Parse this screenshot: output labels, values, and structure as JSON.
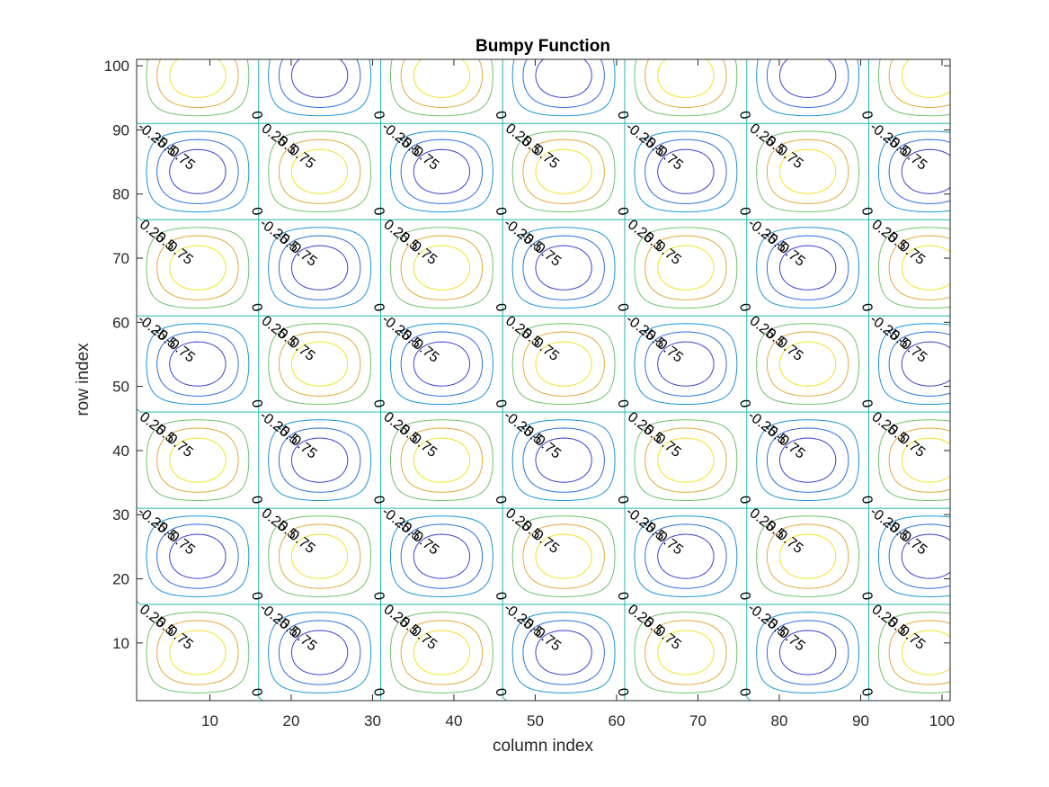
{
  "chart_data": {
    "type": "contour",
    "title": "Bumpy Function",
    "xlabel": "column index",
    "ylabel": "row index",
    "xlim": [
      1,
      101
    ],
    "ylim": [
      1,
      101
    ],
    "xticks": [
      10,
      20,
      30,
      40,
      50,
      60,
      70,
      80,
      90,
      100
    ],
    "yticks": [
      10,
      20,
      30,
      40,
      50,
      60,
      70,
      80,
      90,
      100
    ],
    "grid": false,
    "function": "z = sin(2*pi*(x-1)/30) * sin(2*pi*(y-1)/30)",
    "levels": [
      -0.75,
      -0.5,
      -0.25,
      0,
      0.25,
      0.5,
      0.75
    ],
    "level_labels": [
      "-0.75",
      "-0.5",
      "-0.25",
      "0",
      "0.25",
      "0.5",
      "0.75"
    ],
    "colormap": "parula",
    "level_colors": {
      "-0.75": "#3b3fd6",
      "-0.5": "#2b6de0",
      "-0.25": "#1a95d8",
      "0": "#22b6b0",
      "0.25": "#6cc26a",
      "0.5": "#e3a83a",
      "0.75": "#f2e225"
    }
  }
}
